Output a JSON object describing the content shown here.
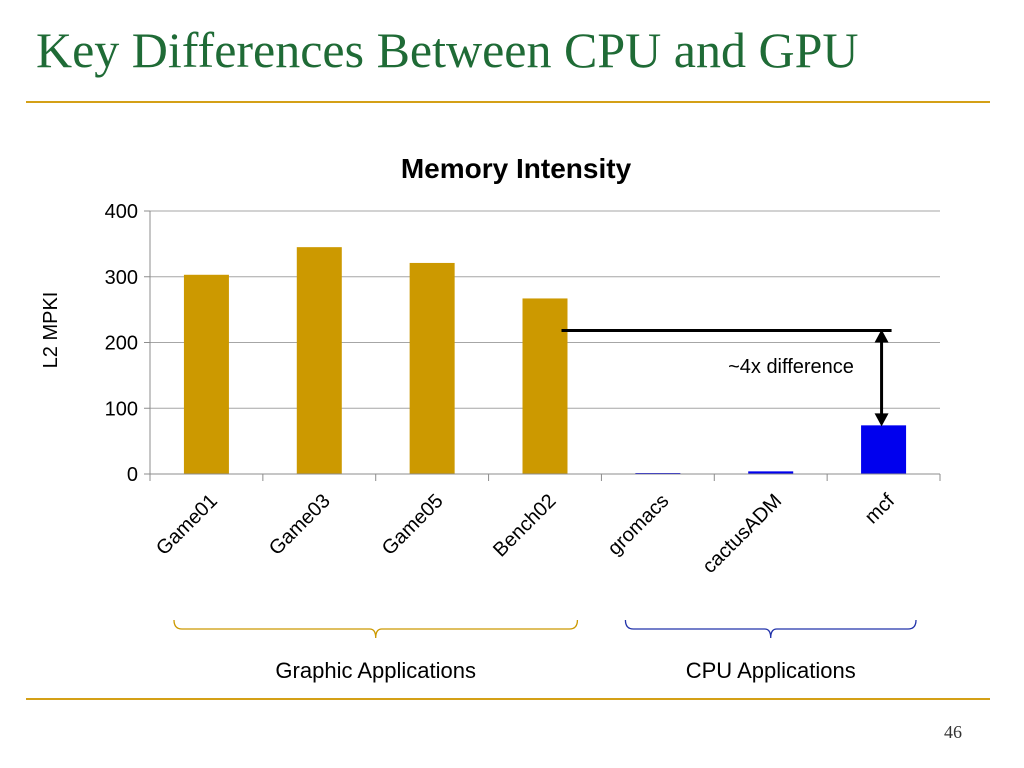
{
  "slide": {
    "title": "Key Differences Between CPU and GPU",
    "page_number": "46",
    "accent_color": "#1f6b36",
    "rule_color": "#d4a017"
  },
  "chart_data": {
    "type": "bar",
    "title": "Memory Intensity",
    "xlabel": "",
    "ylabel": "L2 MPKI",
    "ylim": [
      0,
      400
    ],
    "yticks": [
      0,
      100,
      200,
      300,
      400
    ],
    "grid": true,
    "categories": [
      "Game01",
      "Game03",
      "Game05",
      "Bench02",
      "gromacs",
      "cactusADM",
      "mcf"
    ],
    "values": [
      303,
      345,
      321,
      267,
      1,
      4,
      74
    ],
    "bar_colors": [
      "#cc9900",
      "#cc9900",
      "#cc9900",
      "#cc9900",
      "#0000ee",
      "#0000ee",
      "#0000ee"
    ],
    "annotation": {
      "text": "~4x difference",
      "from_category": "Bench02",
      "to_category": "mcf"
    },
    "groups": [
      {
        "label": "Graphic Applications",
        "start": 0,
        "end": 3,
        "color": "#cc9900"
      },
      {
        "label": "CPU Applications",
        "start": 4,
        "end": 6,
        "color": "#2233aa"
      }
    ]
  }
}
